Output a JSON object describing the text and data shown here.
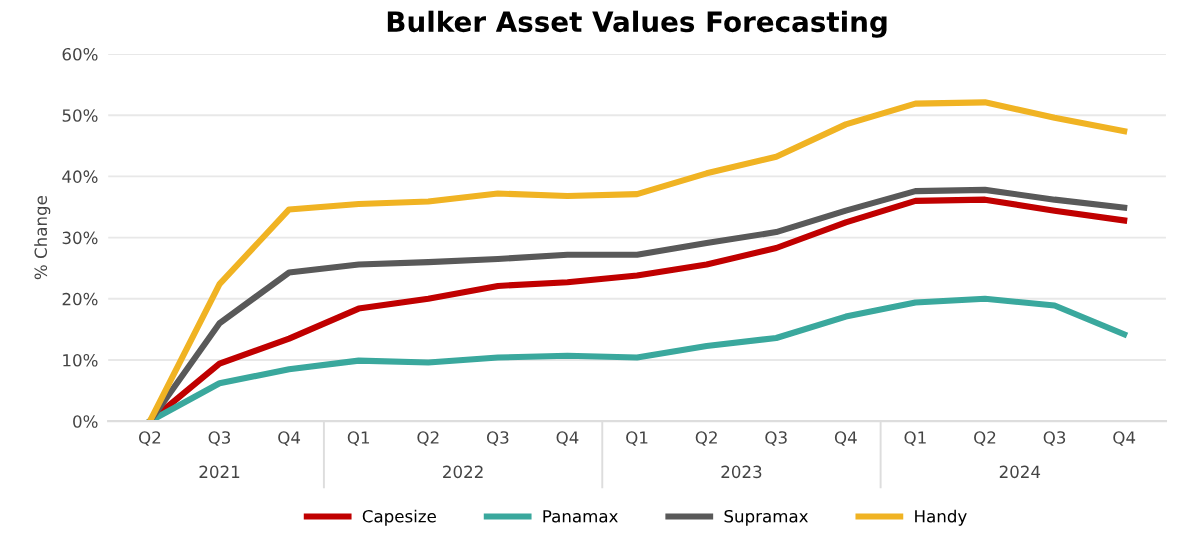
{
  "chart_data": {
    "type": "line",
    "title": "Bulker Asset Values Forecasting",
    "ylabel": "% Change",
    "categories": [
      "Q2",
      "Q3",
      "Q4",
      "Q1",
      "Q2",
      "Q3",
      "Q4",
      "Q1",
      "Q2",
      "Q3",
      "Q4",
      "Q1",
      "Q2",
      "Q3",
      "Q4"
    ],
    "annotations": [
      "2021",
      "2022",
      "2023",
      "2024"
    ],
    "series": [
      {
        "name": "Capesize",
        "color": "#c00000",
        "values": [
          0,
          9.4,
          13.5,
          18.4,
          20.0,
          22.1,
          22.7,
          23.8,
          25.6,
          28.3,
          32.5,
          36.0,
          36.2,
          34.4,
          32.8
        ]
      },
      {
        "name": "Panamax",
        "color": "#3aa89d",
        "values": [
          0,
          6.2,
          8.5,
          9.9,
          9.6,
          10.4,
          10.7,
          10.4,
          12.3,
          13.6,
          17.1,
          19.4,
          20.0,
          18.9,
          14.2
        ]
      },
      {
        "name": "Supramax",
        "color": "#595959",
        "values": [
          0,
          16.0,
          24.3,
          25.6,
          26.0,
          26.5,
          27.2,
          27.2,
          29.1,
          30.9,
          34.4,
          37.6,
          37.8,
          36.2,
          34.9
        ]
      },
      {
        "name": "Handy",
        "color": "#f0b323",
        "values": [
          0,
          22.4,
          34.6,
          35.5,
          35.9,
          37.2,
          36.8,
          37.1,
          40.5,
          43.2,
          48.5,
          51.9,
          52.1,
          49.6,
          47.4
        ]
      }
    ],
    "ylim": [
      0,
      60
    ],
    "yticks": [
      {
        "value": 0,
        "label": "0%"
      },
      {
        "value": 10,
        "label": "10%"
      },
      {
        "value": 20,
        "label": "20%"
      },
      {
        "value": 30,
        "label": "30%"
      },
      {
        "value": 40,
        "label": "40%"
      },
      {
        "value": 50,
        "label": "50%"
      },
      {
        "value": 60,
        "label": "60%"
      }
    ],
    "grid": "y",
    "legend": "bottom",
    "marker": "none",
    "line_style": "solid"
  }
}
